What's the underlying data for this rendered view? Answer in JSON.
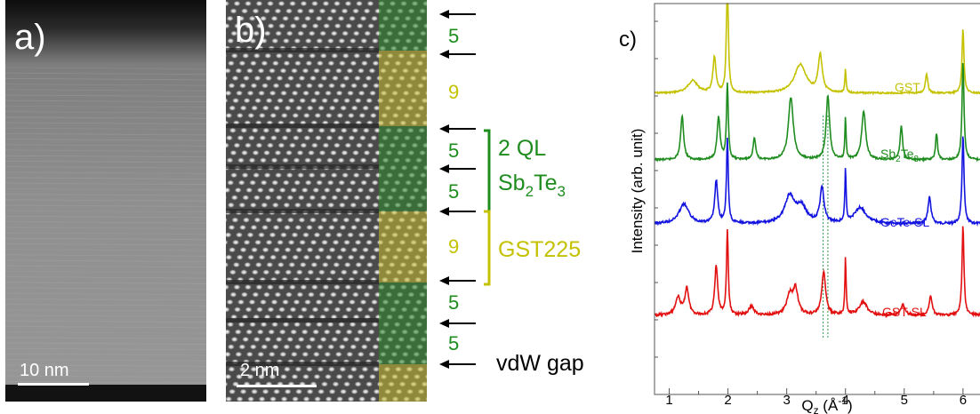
{
  "panel_a": {
    "label": "a)",
    "scalebar": "10 nm"
  },
  "panel_b": {
    "label": "b)",
    "scalebar": "2 nm",
    "layers": [
      {
        "n": "5",
        "type": "ql"
      },
      {
        "n": "9",
        "type": "gst"
      },
      {
        "n": "5",
        "type": "ql"
      },
      {
        "n": "5",
        "type": "ql"
      },
      {
        "n": "9",
        "type": "gst"
      },
      {
        "n": "5",
        "type": "ql"
      },
      {
        "n": "5",
        "type": "ql"
      }
    ],
    "bracket_ql": {
      "line1": "2 QL",
      "line2_base": "Sb",
      "line2_sub1": "2",
      "line2_mid": "Te",
      "line2_sub2": "3"
    },
    "bracket_gst": "GST225",
    "vdw_label": "vdW gap",
    "colors": {
      "ql": "#2e8b2e",
      "gst": "#c8c030"
    }
  },
  "chart_data": {
    "type": "line",
    "panel_label": "c)",
    "ylabel": "Intensity (arb. unit)",
    "xlabel_base": "Q",
    "xlabel_sub": "z",
    "xlabel_unit_pre": " (Å",
    "xlabel_unit_sup": "-1",
    "xlabel_unit_post": ")",
    "xlim": [
      0.75,
      6.35
    ],
    "xticks": [
      "1",
      "2",
      "3",
      "4",
      "5",
      "6"
    ],
    "series": [
      {
        "name": "GST",
        "color": "#c4c200",
        "baseline": 105,
        "noise": 0.9,
        "peaks": [
          [
            1.4,
            14,
            0.1
          ],
          [
            1.77,
            40,
            0.03
          ],
          [
            1.99,
            140,
            0.018
          ],
          [
            3.23,
            32,
            0.12
          ],
          [
            3.57,
            42,
            0.04
          ],
          [
            4.0,
            26,
            0.012
          ],
          [
            5.38,
            22,
            0.025
          ],
          [
            6.0,
            72,
            0.02
          ]
        ]
      },
      {
        "name_base": "Sb",
        "name_sub1": "2",
        "name_mid": "Te",
        "name_sub2": "3",
        "color": "#1e8c1e",
        "baseline": 180,
        "noise": 1.0,
        "peaks": [
          [
            1.22,
            50,
            0.03
          ],
          [
            1.84,
            48,
            0.03
          ],
          [
            1.99,
            85,
            0.018
          ],
          [
            2.45,
            25,
            0.025
          ],
          [
            3.07,
            70,
            0.05
          ],
          [
            3.7,
            72,
            0.035
          ],
          [
            4.0,
            48,
            0.012
          ],
          [
            4.31,
            55,
            0.04
          ],
          [
            4.95,
            38,
            0.025
          ],
          [
            5.55,
            30,
            0.02
          ],
          [
            6.0,
            110,
            0.02
          ]
        ]
      },
      {
        "name": "GeTe-SL",
        "color": "#1414e0",
        "baseline": 252,
        "noise": 1.3,
        "peaks": [
          [
            1.25,
            22,
            0.1
          ],
          [
            1.8,
            48,
            0.03
          ],
          [
            1.99,
            95,
            0.018
          ],
          [
            3.05,
            30,
            0.1
          ],
          [
            3.25,
            18,
            0.1
          ],
          [
            3.6,
            40,
            0.04
          ],
          [
            4.0,
            60,
            0.012
          ],
          [
            4.25,
            18,
            0.12
          ],
          [
            5.43,
            30,
            0.03
          ],
          [
            6.0,
            100,
            0.02
          ]
        ]
      },
      {
        "name": "GST-SL",
        "color": "#e21010",
        "baseline": 355,
        "noise": 1.4,
        "peaks": [
          [
            1.15,
            20,
            0.05
          ],
          [
            1.3,
            30,
            0.04
          ],
          [
            1.8,
            55,
            0.03
          ],
          [
            1.99,
            95,
            0.018
          ],
          [
            2.4,
            10,
            0.05
          ],
          [
            3.05,
            22,
            0.06
          ],
          [
            3.15,
            28,
            0.05
          ],
          [
            3.63,
            48,
            0.04
          ],
          [
            4.0,
            65,
            0.012
          ],
          [
            4.3,
            15,
            0.08
          ],
          [
            4.98,
            12,
            0.04
          ],
          [
            5.45,
            22,
            0.03
          ],
          [
            6.0,
            100,
            0.02
          ]
        ]
      }
    ],
    "guides_x": [
      3.62,
      3.7
    ]
  }
}
